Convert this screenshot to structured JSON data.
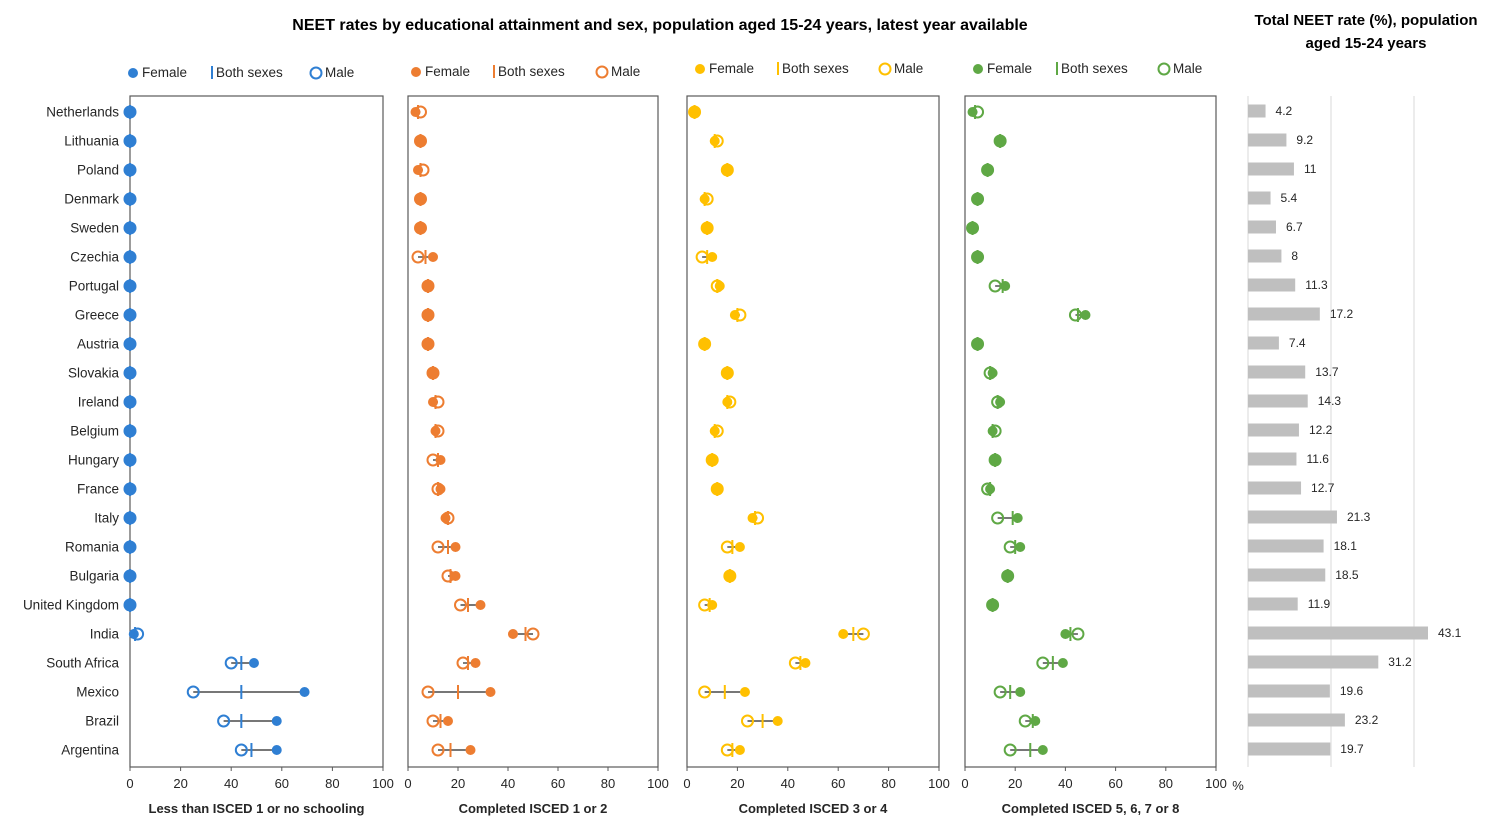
{
  "title": "NEET rates by educational attainment and sex, population aged 15-24 years, latest year available",
  "side_title": [
    "Total NEET rate (%), population",
    "aged 15-24 years"
  ],
  "colors": {
    "ISCED_0": "#2f7fd3",
    "ISCED_12": "#ed7d31",
    "ISCED_34": "#ffc000",
    "ISCED_5678": "#5fa845",
    "bar": "#bfbfbf"
  },
  "legend_labels": {
    "female": "Female",
    "both": "Both sexes",
    "male": "Male"
  },
  "percent_sign": "%",
  "chart_data": [
    {
      "type": "dumbbell",
      "panel": "ISCED_0",
      "xlabel": "Less than ISCED 1 or no schooling",
      "xlim": [
        0,
        100
      ],
      "xticks": [
        "0",
        "20",
        "40",
        "60",
        "80",
        "100"
      ],
      "categories": [
        "Netherlands",
        "Lithuania",
        "Poland",
        "Denmark",
        "Sweden",
        "Czechia",
        "Portugal",
        "Greece",
        "Austria",
        "Slovakia",
        "Ireland",
        "Belgium",
        "Hungary",
        "France",
        "Italy",
        "Romania",
        "Bulgaria",
        "United Kingdom",
        "India",
        "South Africa",
        "Mexico",
        "Brazil",
        "Argentina"
      ],
      "series": [
        {
          "name": "Female",
          "values": [
            0,
            0,
            0,
            0,
            0,
            0,
            0,
            0,
            0,
            0,
            0,
            0,
            0,
            0,
            0,
            0,
            0,
            0,
            1.5,
            49,
            69,
            58,
            58
          ]
        },
        {
          "name": "Both sexes",
          "values": [
            0,
            0,
            0,
            0,
            0,
            0,
            0,
            0,
            0,
            0,
            0,
            0,
            0,
            0,
            0,
            0,
            0,
            0,
            2,
            44,
            44,
            44,
            48
          ]
        },
        {
          "name": "Male",
          "values": [
            0,
            0,
            0,
            0,
            0,
            0,
            0,
            0,
            0,
            0,
            0,
            0,
            0,
            0,
            0,
            0,
            0,
            0,
            3,
            40,
            25,
            37,
            44
          ]
        }
      ]
    },
    {
      "type": "dumbbell",
      "panel": "ISCED_12",
      "xlabel": "Completed ISCED 1 or 2",
      "xlim": [
        0,
        100
      ],
      "xticks": [
        "0",
        "20",
        "40",
        "60",
        "80",
        "100"
      ],
      "categories": [
        "Netherlands",
        "Lithuania",
        "Poland",
        "Denmark",
        "Sweden",
        "Czechia",
        "Portugal",
        "Greece",
        "Austria",
        "Slovakia",
        "Ireland",
        "Belgium",
        "Hungary",
        "France",
        "Italy",
        "Romania",
        "Bulgaria",
        "United Kingdom",
        "India",
        "South Africa",
        "Mexico",
        "Brazil",
        "Argentina"
      ],
      "series": [
        {
          "name": "Female",
          "values": [
            3,
            5,
            4,
            5,
            5,
            10,
            8,
            8,
            8,
            10,
            10,
            11,
            13,
            13,
            15,
            19,
            19,
            29,
            42,
            27,
            33,
            16,
            25
          ]
        },
        {
          "name": "Both sexes",
          "values": [
            4,
            5,
            5,
            5,
            5,
            7,
            8,
            8,
            8,
            10,
            11,
            11,
            12,
            12,
            16,
            16,
            17,
            24,
            47,
            24,
            20,
            13,
            17
          ]
        },
        {
          "name": "Male",
          "values": [
            5,
            5,
            6,
            5,
            5,
            4,
            8,
            8,
            8,
            10,
            12,
            12,
            10,
            12,
            16,
            12,
            16,
            21,
            50,
            22,
            8,
            10,
            12
          ]
        }
      ]
    },
    {
      "type": "dumbbell",
      "panel": "ISCED_34",
      "xlabel": "Completed ISCED 3 or 4",
      "xlim": [
        0,
        100
      ],
      "xticks": [
        "0",
        "20",
        "40",
        "60",
        "80",
        "100"
      ],
      "categories": [
        "Netherlands",
        "Lithuania",
        "Poland",
        "Denmark",
        "Sweden",
        "Czechia",
        "Portugal",
        "Greece",
        "Austria",
        "Slovakia",
        "Ireland",
        "Belgium",
        "Hungary",
        "France",
        "Italy",
        "Romania",
        "Bulgaria",
        "United Kingdom",
        "India",
        "South Africa",
        "Mexico",
        "Brazil",
        "Argentina"
      ],
      "series": [
        {
          "name": "Female",
          "values": [
            3,
            11,
            16,
            7,
            8,
            10,
            13,
            19,
            7,
            16,
            16,
            11,
            10,
            12,
            26,
            21,
            17,
            10,
            62,
            47,
            23,
            36,
            21
          ]
        },
        {
          "name": "Both sexes",
          "values": [
            3,
            11,
            16,
            7,
            8,
            8,
            12,
            20,
            7,
            16,
            16,
            11,
            10,
            12,
            27,
            18,
            17,
            9,
            66,
            45,
            15,
            30,
            18
          ]
        },
        {
          "name": "Male",
          "values": [
            3,
            12,
            16,
            8,
            8,
            6,
            12,
            21,
            7,
            16,
            17,
            12,
            10,
            12,
            28,
            16,
            17,
            7,
            70,
            43,
            7,
            24,
            16
          ]
        }
      ]
    },
    {
      "type": "dumbbell",
      "panel": "ISCED_5678",
      "xlabel": "Completed ISCED 5, 6, 7 or 8",
      "xlim": [
        0,
        100
      ],
      "xticks": [
        "0",
        "20",
        "40",
        "60",
        "80",
        "100"
      ],
      "categories": [
        "Netherlands",
        "Lithuania",
        "Poland",
        "Denmark",
        "Sweden",
        "Czechia",
        "Portugal",
        "Greece",
        "Austria",
        "Slovakia",
        "Ireland",
        "Belgium",
        "Hungary",
        "France",
        "Italy",
        "Romania",
        "Bulgaria",
        "United Kingdom",
        "India",
        "South Africa",
        "Mexico",
        "Brazil",
        "Argentina"
      ],
      "series": [
        {
          "name": "Female",
          "values": [
            3,
            14,
            9,
            5,
            3,
            5,
            16,
            48,
            5,
            11,
            14,
            11,
            12,
            10,
            21,
            22,
            17,
            11,
            40,
            39,
            22,
            28,
            31
          ]
        },
        {
          "name": "Both sexes",
          "values": [
            4,
            14,
            9,
            5,
            3,
            5,
            15,
            45,
            5,
            10,
            13,
            11,
            12,
            10,
            19,
            20,
            17,
            11,
            42,
            35,
            18,
            27,
            26
          ]
        },
        {
          "name": "Male",
          "values": [
            5,
            14,
            9,
            5,
            3,
            5,
            12,
            44,
            5,
            10,
            13,
            12,
            12,
            9,
            13,
            18,
            17,
            11,
            45,
            31,
            14,
            24,
            18
          ]
        }
      ]
    },
    {
      "type": "bar",
      "orientation": "horizontal",
      "panel": "Total",
      "categories": [
        "Netherlands",
        "Lithuania",
        "Poland",
        "Denmark",
        "Sweden",
        "Czechia",
        "Portugal",
        "Greece",
        "Austria",
        "Slovakia",
        "Ireland",
        "Belgium",
        "Hungary",
        "France",
        "Italy",
        "Romania",
        "Bulgaria",
        "United Kingdom",
        "India",
        "South Africa",
        "Mexico",
        "Brazil",
        "Argentina"
      ],
      "values": [
        4.2,
        9.2,
        11,
        5.4,
        6.7,
        8,
        11.3,
        17.2,
        7.4,
        13.7,
        14.3,
        12.2,
        11.6,
        12.7,
        21.3,
        18.1,
        18.5,
        11.9,
        43.1,
        31.2,
        19.6,
        23.2,
        19.7
      ],
      "labels": [
        "4.2",
        "9.2",
        "11",
        "5.4",
        "6.7",
        "8",
        "11.3",
        "17.2",
        "7.4",
        "13.7",
        "14.3",
        "12.2",
        "11.6",
        "12.7",
        "21.3",
        "18.1",
        "18.5",
        "11.9",
        "43.1",
        "31.2",
        "19.6",
        "23.2",
        "19.7"
      ],
      "xlim": [
        0,
        44
      ]
    }
  ]
}
